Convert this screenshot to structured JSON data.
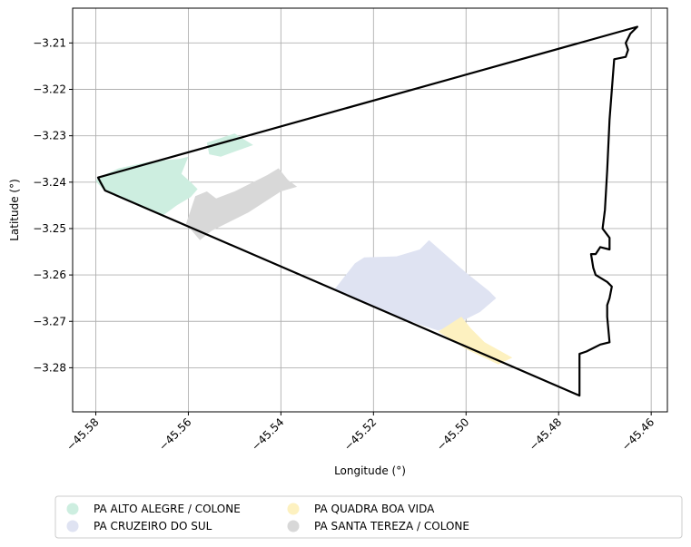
{
  "chart_data": {
    "type": "map",
    "xlabel": "Longitude (°)",
    "ylabel": "Latitude (°)",
    "xlim": [
      -45.585,
      -45.4565
    ],
    "ylim": [
      -3.2895,
      -3.2025
    ],
    "x_ticks": [
      -45.58,
      -45.56,
      -45.54,
      -45.52,
      -45.5,
      -45.48,
      -45.46
    ],
    "x_tick_labels": [
      "−45.58",
      "−45.56",
      "−45.54",
      "−45.52",
      "−45.50",
      "−45.48",
      "−45.46"
    ],
    "y_ticks": [
      -3.21,
      -3.22,
      -3.23,
      -3.24,
      -3.25,
      -3.26,
      -3.27,
      -3.28
    ],
    "y_tick_labels": [
      "−3.21",
      "−3.22",
      "−3.23",
      "−3.24",
      "−3.25",
      "−3.26",
      "−3.27",
      "−3.28"
    ],
    "grid": true,
    "legend_placement": "bottom-center",
    "legend_columns": 3,
    "series": [
      {
        "name": "PA ALTO ALEGRE / COLONE",
        "color": "#cdeee0",
        "polygons": [
          [
            [
              -45.5795,
              -3.239
            ],
            [
              -45.575,
              -3.237
            ],
            [
              -45.568,
              -3.2355
            ],
            [
              -45.562,
              -3.235
            ],
            [
              -45.56,
              -3.2345
            ],
            [
              -45.5615,
              -3.2382
            ],
            [
              -45.5595,
              -3.24
            ],
            [
              -45.558,
              -3.2415
            ],
            [
              -45.5595,
              -3.2432
            ],
            [
              -45.5625,
              -3.245
            ],
            [
              -45.5655,
              -3.2472
            ],
            [
              -45.572,
              -3.2445
            ],
            [
              -45.578,
              -3.242
            ],
            [
              -45.58,
              -3.2398
            ]
          ],
          [
            [
              -45.556,
              -3.2315
            ],
            [
              -45.55,
              -3.2295
            ],
            [
              -45.546,
              -3.232
            ],
            [
              -45.553,
              -3.2345
            ],
            [
              -45.5555,
              -3.234
            ]
          ]
        ]
      },
      {
        "name": "PA CRUZEIRO DO SUL",
        "color": "#dfe3f2",
        "polygons": [
          [
            [
              -45.5285,
              -3.2632
            ],
            [
              -45.524,
              -3.2575
            ],
            [
              -45.522,
              -3.2562
            ],
            [
              -45.515,
              -3.256
            ],
            [
              -45.51,
              -3.2545
            ],
            [
              -45.508,
              -3.2525
            ],
            [
              -45.5,
              -3.2595
            ],
            [
              -45.495,
              -3.2635
            ],
            [
              -45.4935,
              -3.265
            ],
            [
              -45.497,
              -3.268
            ],
            [
              -45.502,
              -3.2705
            ],
            [
              -45.506,
              -3.272
            ],
            [
              -45.515,
              -3.269
            ],
            [
              -45.525,
              -3.2648
            ]
          ]
        ]
      },
      {
        "name": "PA QUADRA BOA VIDA",
        "color": "#fdf1c0",
        "polygons": [
          [
            [
              -45.506,
              -3.2722
            ],
            [
              -45.501,
              -3.269
            ],
            [
              -45.499,
              -3.2715
            ],
            [
              -45.496,
              -3.2745
            ],
            [
              -45.49,
              -3.2778
            ],
            [
              -45.493,
              -3.2793
            ],
            [
              -45.5,
              -3.276
            ]
          ]
        ]
      },
      {
        "name": "PA SANTA TEREZA / COLONE",
        "color": "#d8d8d8",
        "polygons": [
          [
            [
              -45.5605,
              -3.249
            ],
            [
              -45.5595,
              -3.246
            ],
            [
              -45.5585,
              -3.243
            ],
            [
              -45.556,
              -3.242
            ],
            [
              -45.554,
              -3.2435
            ],
            [
              -45.55,
              -3.242
            ],
            [
              -45.543,
              -3.2385
            ],
            [
              -45.5405,
              -3.237
            ],
            [
              -45.5385,
              -3.2395
            ],
            [
              -45.5365,
              -3.241
            ],
            [
              -45.54,
              -3.242
            ],
            [
              -45.547,
              -3.2465
            ],
            [
              -45.555,
              -3.2505
            ],
            [
              -45.5575,
              -3.2525
            ]
          ]
        ]
      }
    ],
    "boundary": {
      "color": "#000000",
      "points": [
        [
          -45.5795,
          -3.239
        ],
        [
          -45.463,
          -3.2065
        ],
        [
          -45.4645,
          -3.208
        ],
        [
          -45.465,
          -3.209
        ],
        [
          -45.4655,
          -3.21
        ],
        [
          -45.465,
          -3.2115
        ],
        [
          -45.4655,
          -3.213
        ],
        [
          -45.468,
          -3.2135
        ],
        [
          -45.469,
          -3.2265
        ],
        [
          -45.4695,
          -3.2375
        ],
        [
          -45.47,
          -3.246
        ],
        [
          -45.4705,
          -3.25
        ],
        [
          -45.469,
          -3.252
        ],
        [
          -45.469,
          -3.2545
        ],
        [
          -45.471,
          -3.254
        ],
        [
          -45.472,
          -3.2555
        ],
        [
          -45.473,
          -3.2555
        ],
        [
          -45.4725,
          -3.2585
        ],
        [
          -45.472,
          -3.26
        ],
        [
          -45.4695,
          -3.2615
        ],
        [
          -45.4685,
          -3.2625
        ],
        [
          -45.469,
          -3.265
        ],
        [
          -45.4695,
          -3.2665
        ],
        [
          -45.4695,
          -3.269
        ],
        [
          -45.469,
          -3.2745
        ],
        [
          -45.471,
          -3.275
        ],
        [
          -45.474,
          -3.2765
        ],
        [
          -45.4755,
          -3.277
        ],
        [
          -45.4755,
          -3.28
        ],
        [
          -45.4755,
          -3.286
        ],
        [
          -45.578,
          -3.2418
        ],
        [
          -45.579,
          -3.24
        ]
      ]
    }
  }
}
